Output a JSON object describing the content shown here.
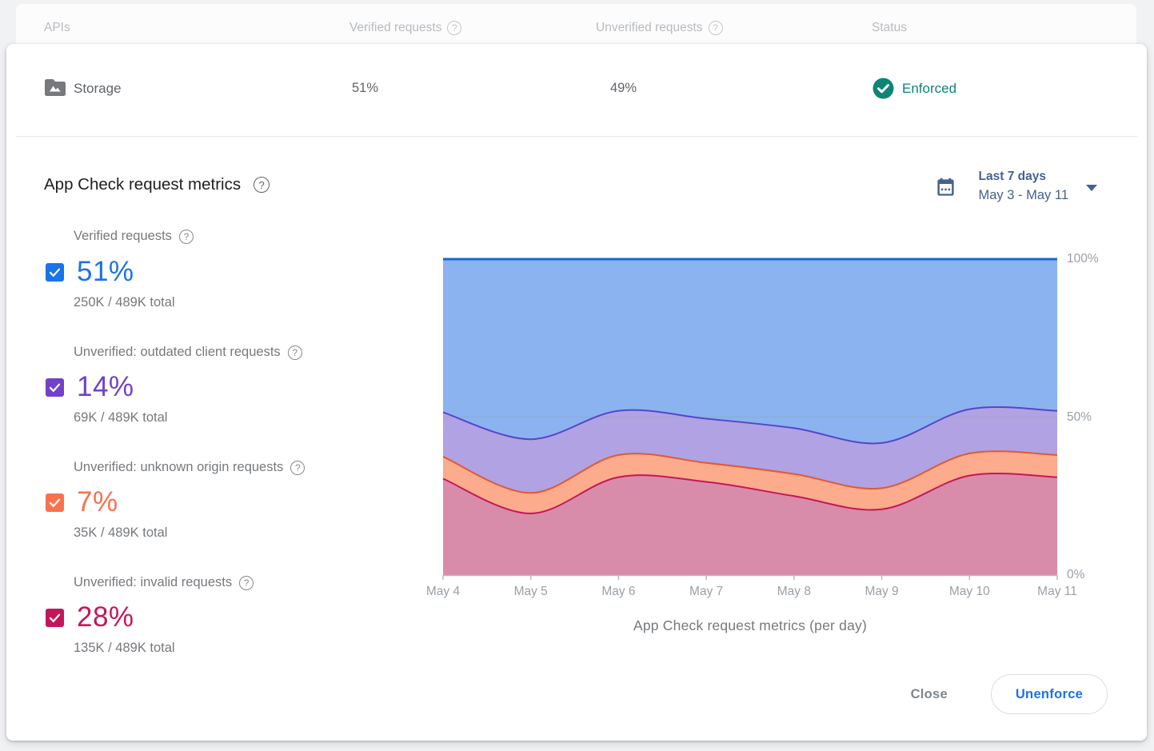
{
  "table_header": {
    "apis": "APIs",
    "verified": "Verified requests",
    "unverified": "Unverified requests",
    "status": "Status"
  },
  "api_row": {
    "name": "Storage",
    "verified_pct": "51%",
    "unverified_pct": "49%",
    "status": "Enforced",
    "status_color": "#0e8476"
  },
  "section": {
    "title": "App Check request metrics"
  },
  "date_picker": {
    "range_label": "Last 7 days",
    "range_dates": "May 3 - May 11",
    "color": "#45618e"
  },
  "metrics": [
    {
      "label": "Verified requests",
      "pct": "51%",
      "detail": "250K / 489K total",
      "color": "#1a73e8"
    },
    {
      "label": "Unverified: outdated client requests",
      "pct": "14%",
      "detail": "69K / 489K total",
      "color": "#7142c7"
    },
    {
      "label": "Unverified: unknown origin requests",
      "pct": "7%",
      "detail": "35K / 489K total",
      "color": "#f9714d"
    },
    {
      "label": "Unverified: invalid requests",
      "pct": "28%",
      "detail": "135K / 489K total",
      "color": "#c2185b"
    }
  ],
  "chart_data": {
    "type": "area",
    "stacked": true,
    "caption": "App Check request metrics (per day)",
    "x_labels": [
      "May 4",
      "May 5",
      "May 6",
      "May 7",
      "May 8",
      "May 9",
      "May 10",
      "May 11"
    ],
    "y_ticks": [
      "0%",
      "50%",
      "100%"
    ],
    "y_tick_values": [
      0,
      50,
      100
    ],
    "ylim": [
      0,
      100
    ],
    "grid_value": 50,
    "series": [
      {
        "name": "Unverified: invalid requests",
        "values": [
          30.5,
          19.5,
          31,
          29.5,
          25,
          20.8,
          31.5,
          31
        ],
        "fill": "#d98ca9",
        "stroke": "#c2185b"
      },
      {
        "name": "Unverified: unknown origin requests",
        "values": [
          7,
          6.5,
          7,
          6,
          7,
          6.7,
          7,
          7
        ],
        "fill": "#fcab8d",
        "stroke": "#e05a33"
      },
      {
        "name": "Unverified: outdated client requests",
        "values": [
          14,
          17,
          14,
          14,
          14.5,
          14.3,
          14,
          14
        ],
        "fill": "#b1a2e3",
        "stroke": "#5347c9"
      },
      {
        "name": "Verified requests",
        "values": [
          48.5,
          57,
          48,
          50.5,
          53.5,
          58.2,
          47.5,
          48
        ],
        "fill": "#8ab3f0",
        "stroke": "#1a67d8"
      }
    ]
  },
  "footer": {
    "close_label": "Close",
    "unenforce_label": "Unenforce"
  }
}
